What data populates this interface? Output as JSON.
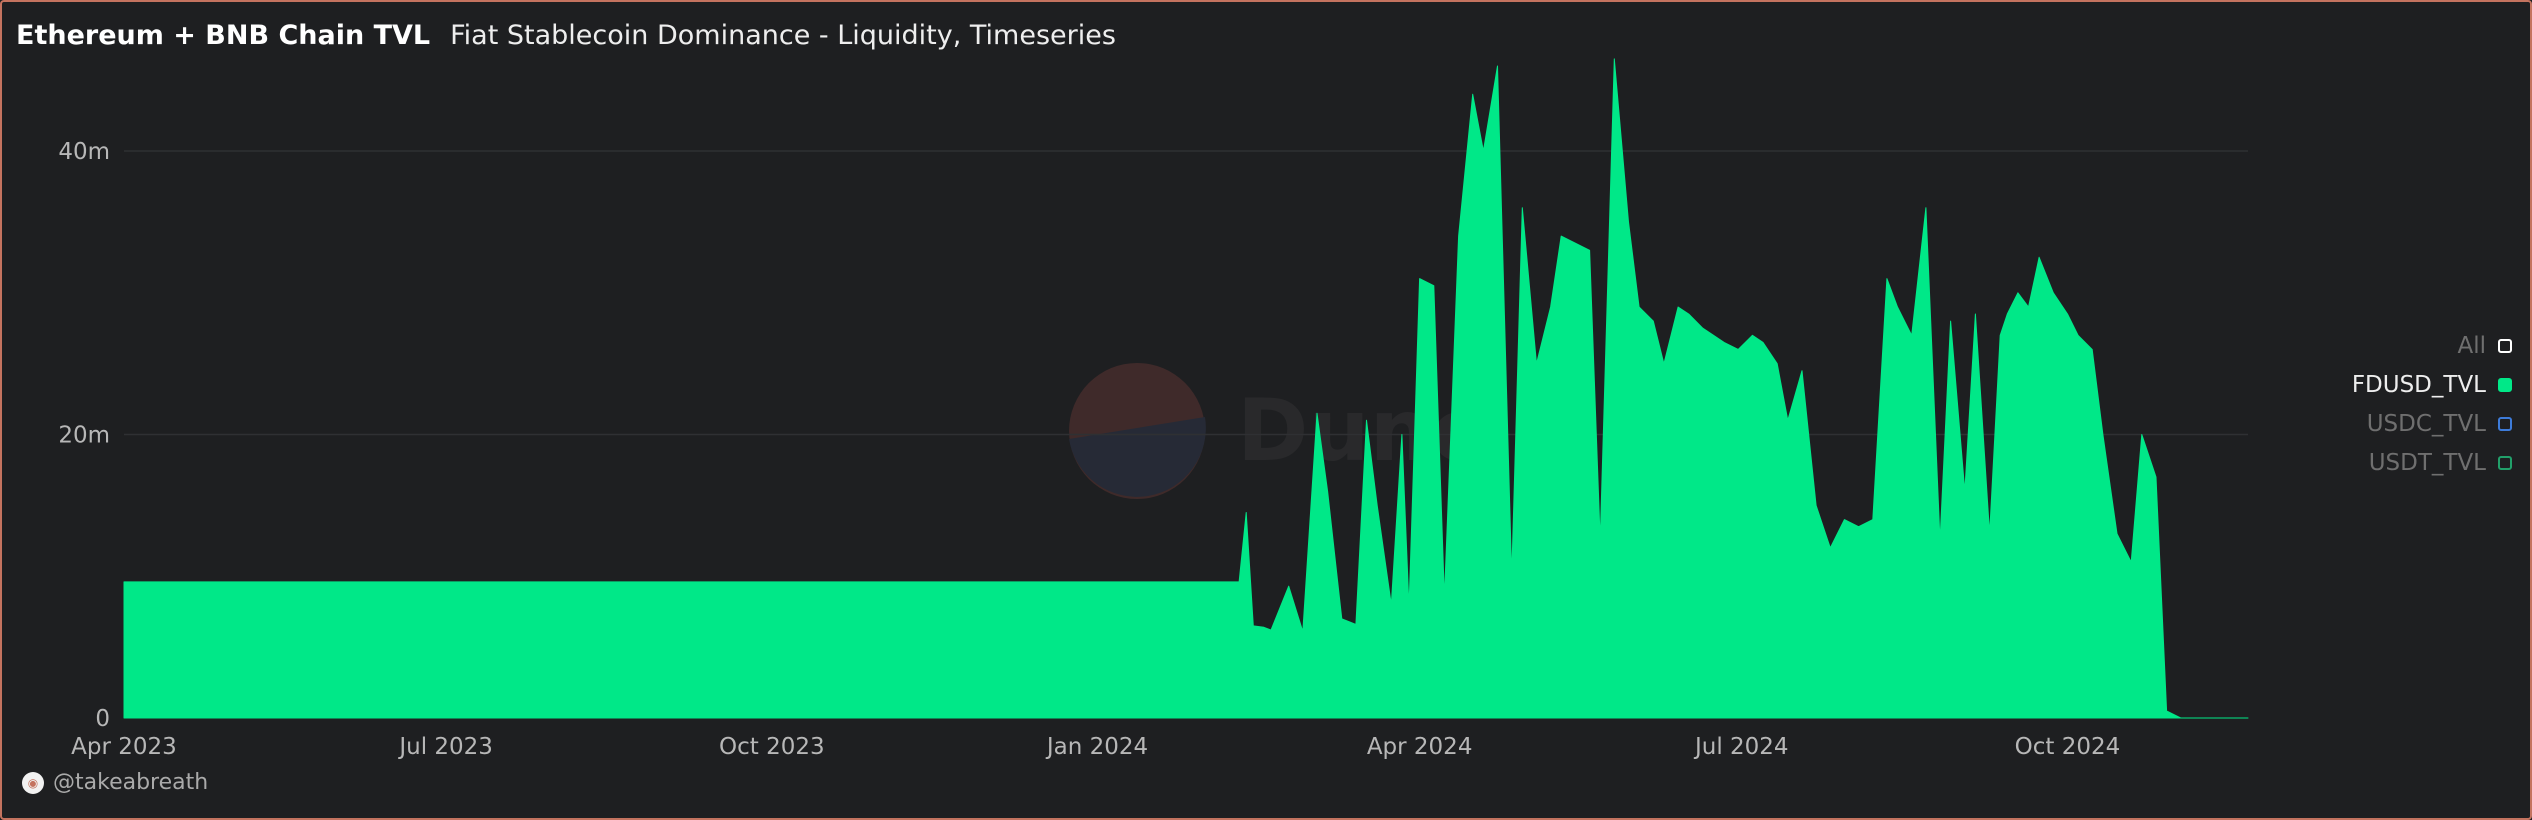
{
  "header": {
    "title": "Ethereum + BNB Chain TVL",
    "subtitle": "Fiat Stablecoin Dominance - Liquidity, Timeseries"
  },
  "watermark": {
    "text": "Dune"
  },
  "legend": {
    "items": [
      {
        "label": "All",
        "color": "#ffffff",
        "active": false,
        "filled": false
      },
      {
        "label": "FDUSD_TVL",
        "color": "#00e888",
        "active": true,
        "filled": true
      },
      {
        "label": "USDC_TVL",
        "color": "#3d7bd9",
        "active": false,
        "filled": false
      },
      {
        "label": "USDT_TVL",
        "color": "#21a06a",
        "active": false,
        "filled": false
      }
    ]
  },
  "footer": {
    "author": "@takeabreath"
  },
  "colors": {
    "background": "#1e1f21",
    "area": "#00e888",
    "grid": "#2f3033",
    "axis_text": "#b7b7b7"
  },
  "chart_data": {
    "type": "area",
    "series": [
      {
        "name": "FDUSD_TVL",
        "x": [
          "2023-04-01",
          "2024-02-10",
          "2024-02-12",
          "2024-02-14",
          "2024-02-17",
          "2024-02-19",
          "2024-02-24",
          "2024-02-28",
          "2024-03-03",
          "2024-03-06",
          "2024-03-10",
          "2024-03-12",
          "2024-03-14",
          "2024-03-17",
          "2024-03-20",
          "2024-03-24",
          "2024-03-27",
          "2024-03-29",
          "2024-04-01",
          "2024-04-05",
          "2024-04-08",
          "2024-04-12",
          "2024-04-16",
          "2024-04-19",
          "2024-04-23",
          "2024-04-27",
          "2024-04-30",
          "2024-05-04",
          "2024-05-08",
          "2024-05-11",
          "2024-05-15",
          "2024-05-19",
          "2024-05-22",
          "2024-05-26",
          "2024-05-30",
          "2024-06-02",
          "2024-06-06",
          "2024-06-09",
          "2024-06-13",
          "2024-06-16",
          "2024-06-20",
          "2024-06-23",
          "2024-06-26",
          "2024-06-30",
          "2024-07-04",
          "2024-07-07",
          "2024-07-11",
          "2024-07-14",
          "2024-07-18",
          "2024-07-22",
          "2024-07-26",
          "2024-07-30",
          "2024-08-03",
          "2024-08-07",
          "2024-08-11",
          "2024-08-14",
          "2024-08-18",
          "2024-08-22",
          "2024-08-26",
          "2024-08-29",
          "2024-09-02",
          "2024-09-05",
          "2024-09-09",
          "2024-09-12",
          "2024-09-14",
          "2024-09-17",
          "2024-09-20",
          "2024-09-23",
          "2024-09-27",
          "2024-10-01",
          "2024-10-04",
          "2024-10-08",
          "2024-10-11",
          "2024-10-15",
          "2024-10-19",
          "2024-10-22",
          "2024-10-26",
          "2024-10-29",
          "2024-11-02",
          "2024-11-06",
          "2024-11-09",
          "2024-11-12",
          "2024-11-15",
          "2024-11-17",
          "2024-11-19",
          "2024-11-20",
          "2024-11-21"
        ],
        "values": [
          9.6,
          9.6,
          14.5,
          6.5,
          6.4,
          6.2,
          9.3,
          6.1,
          21.5,
          16.0,
          7.0,
          6.8,
          6.6,
          21.0,
          15.0,
          8.0,
          20.0,
          7.8,
          31.0,
          30.5,
          8.5,
          34.0,
          44.0,
          40.0,
          46.0,
          10.0,
          36.0,
          25.0,
          29.0,
          34.0,
          33.5,
          33.0,
          12.5,
          46.5,
          35.0,
          29.0,
          28.0,
          25.0,
          29.0,
          28.5,
          27.5,
          27.0,
          26.5,
          26.0,
          27.0,
          26.5,
          25.0,
          21.0,
          24.5,
          15.0,
          12.0,
          14.0,
          13.5,
          14.0,
          31.0,
          29.0,
          27.0,
          36.0,
          12.5,
          28.0,
          16.0,
          28.5,
          13.0,
          27.0,
          28.5,
          30.0,
          29.0,
          32.5,
          30.0,
          28.5,
          27.0,
          26.0,
          20.0,
          13.0,
          11.0,
          20.0,
          17.0,
          0.5,
          0,
          0,
          0,
          0,
          0,
          0,
          0,
          0,
          0
        ]
      }
    ],
    "xlim": [
      "2023-04-01",
      "2024-11-21"
    ],
    "ylim": [
      0,
      46
    ],
    "x_ticks": [
      "Apr 2023",
      "Jul 2023",
      "Oct 2023",
      "Jan 2024",
      "Apr 2024",
      "Jul 2024",
      "Oct 2024"
    ],
    "x_tick_dates": [
      "2023-04-01",
      "2023-07-01",
      "2023-10-01",
      "2024-01-01",
      "2024-04-01",
      "2024-07-01",
      "2024-10-01"
    ],
    "y_ticks": [
      "0",
      "20m",
      "40m"
    ],
    "y_tick_values": [
      0,
      20,
      40
    ],
    "grid": true,
    "legend_position": "right"
  }
}
